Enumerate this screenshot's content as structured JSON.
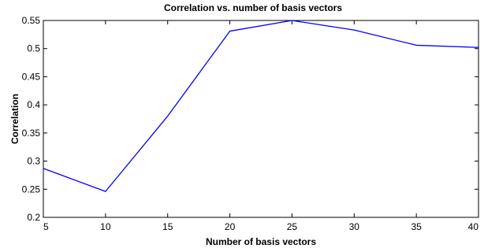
{
  "chart_data": {
    "type": "line",
    "title": "Correlation vs. number of basis vectors",
    "xlabel": "Number of basis vectors",
    "ylabel": "Correlation",
    "xlim": [
      5,
      40
    ],
    "ylim": [
      0.2,
      0.55
    ],
    "x_ticks": [
      5,
      10,
      15,
      20,
      25,
      30,
      35,
      40
    ],
    "y_ticks": [
      0.2,
      0.25,
      0.3,
      0.35,
      0.4,
      0.45,
      0.5,
      0.55
    ],
    "y_tick_labels": [
      "0.2",
      "0.25",
      "0.3",
      "0.35",
      "0.4",
      "0.45",
      "0.5",
      "0.55"
    ],
    "grid": false,
    "series": [
      {
        "color": "#0000ff",
        "x": [
          5,
          10,
          15,
          20,
          25,
          30,
          35,
          40
        ],
        "y": [
          0.287,
          0.246,
          0.38,
          0.531,
          0.55,
          0.533,
          0.506,
          0.502
        ]
      }
    ]
  }
}
